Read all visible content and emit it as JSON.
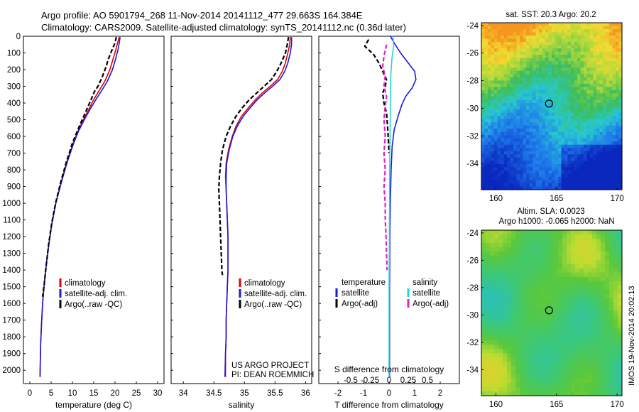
{
  "header": {
    "line1": "Argo profile: AO 5901794_268 11-Nov-2014 20141112_477 29.663S 164.384E",
    "line2": "Climatology: CARS2009. Satellite-adjusted climatology: synTS_20141112.nc (0.36d later)"
  },
  "colors": {
    "climatology": "#e00000",
    "satellite": "#1a1adc",
    "argo": "#000000",
    "salinity_satellite": "#22d8d8",
    "salinity_argo": "#e020c8"
  },
  "chart_data": [
    {
      "type": "line",
      "name": "temperature-profile",
      "xlabel": "temperature (deg C)",
      "ylabel": "",
      "xlim": [
        -1.5,
        31.5
      ],
      "ylim": [
        2080,
        0
      ],
      "x_ticks": [
        0,
        5,
        10,
        15,
        20,
        25,
        30
      ],
      "y_ticks": [
        0,
        100,
        200,
        300,
        400,
        500,
        600,
        700,
        800,
        900,
        1000,
        1100,
        1200,
        1300,
        1400,
        1500,
        1600,
        1700,
        1800,
        1900,
        2000
      ],
      "legend": [
        "climatology",
        "satellite-adj. clim.",
        "Argo(..raw -QC)"
      ],
      "series": [
        {
          "name": "climatology",
          "color": "climatology",
          "dash": "",
          "points": [
            [
              21,
              5
            ],
            [
              20.6,
              40
            ],
            [
              20.2,
              80
            ],
            [
              19.5,
              140
            ],
            [
              18.8,
              200
            ],
            [
              17.6,
              270
            ],
            [
              16.4,
              320
            ],
            [
              15,
              380
            ],
            [
              13.8,
              440
            ],
            [
              12.6,
              500
            ],
            [
              11.3,
              570
            ],
            [
              10.2,
              640
            ],
            [
              8.6,
              760
            ],
            [
              7.3,
              880
            ],
            [
              6.1,
              1000
            ],
            [
              5.2,
              1120
            ],
            [
              4.5,
              1240
            ],
            [
              3.9,
              1360
            ],
            [
              3.4,
              1480
            ],
            [
              3.0,
              1600
            ],
            [
              2.75,
              1720
            ],
            [
              2.55,
              1840
            ],
            [
              2.45,
              1960
            ],
            [
              2.4,
              2040
            ]
          ]
        },
        {
          "name": "satellite-adj. clim.",
          "color": "satellite",
          "dash": "",
          "points": [
            [
              21.2,
              5
            ],
            [
              21,
              40
            ],
            [
              20.7,
              80
            ],
            [
              20.1,
              140
            ],
            [
              19.4,
              200
            ],
            [
              18.2,
              270
            ],
            [
              17,
              320
            ],
            [
              15.5,
              380
            ],
            [
              14.1,
              440
            ],
            [
              12.8,
              500
            ],
            [
              11.4,
              570
            ],
            [
              10.3,
              640
            ],
            [
              8.7,
              760
            ],
            [
              7.35,
              880
            ],
            [
              6.1,
              1000
            ],
            [
              5.2,
              1120
            ],
            [
              4.5,
              1240
            ],
            [
              3.9,
              1360
            ],
            [
              3.4,
              1480
            ],
            [
              3.0,
              1600
            ],
            [
              2.75,
              1720
            ],
            [
              2.55,
              1840
            ],
            [
              2.45,
              1960
            ],
            [
              2.4,
              2040
            ]
          ]
        },
        {
          "name": "Argo(..raw -QC)",
          "color": "argo",
          "dash": "6,3",
          "points": [
            [
              20.3,
              5
            ],
            [
              20,
              40
            ],
            [
              19.5,
              70
            ],
            [
              19,
              100
            ],
            [
              18.4,
              140
            ],
            [
              17.8,
              190
            ],
            [
              16.9,
              250
            ],
            [
              16,
              300
            ],
            [
              15.2,
              330
            ],
            [
              14.2,
              390
            ],
            [
              13,
              460
            ],
            [
              12.3,
              500
            ],
            [
              11.1,
              570
            ],
            [
              10,
              640
            ],
            [
              8.5,
              760
            ],
            [
              7.2,
              880
            ],
            [
              6.05,
              1000
            ],
            [
              5.15,
              1120
            ],
            [
              4.45,
              1240
            ],
            [
              3.9,
              1360
            ],
            [
              3.4,
              1480
            ],
            [
              3.0,
              1560
            ]
          ]
        }
      ]
    },
    {
      "type": "line",
      "name": "salinity-profile",
      "xlabel": "salinity",
      "xlim": [
        33.8,
        36.1
      ],
      "ylim": [
        2080,
        0
      ],
      "x_ticks": [
        34,
        34.5,
        35,
        35.5,
        36
      ],
      "legend": [
        "climatology",
        "satellite-adj. clim.",
        "Argo(..raw -QC)"
      ],
      "series": [
        {
          "name": "climatology",
          "color": "climatology",
          "dash": "",
          "points": [
            [
              35.75,
              5
            ],
            [
              35.74,
              50
            ],
            [
              35.71,
              100
            ],
            [
              35.67,
              160
            ],
            [
              35.62,
              210
            ],
            [
              35.54,
              260
            ],
            [
              35.42,
              300
            ],
            [
              35.29,
              340
            ],
            [
              35.18,
              380
            ],
            [
              35.06,
              430
            ],
            [
              34.95,
              480
            ],
            [
              34.86,
              540
            ],
            [
              34.8,
              600
            ],
            [
              34.74,
              680
            ],
            [
              34.7,
              760
            ],
            [
              34.69,
              840
            ],
            [
              34.7,
              920
            ],
            [
              34.71,
              1000
            ],
            [
              34.72,
              1100
            ],
            [
              34.73,
              1200
            ],
            [
              34.73,
              1300
            ],
            [
              34.73,
              1400
            ],
            [
              34.72,
              1500
            ],
            [
              34.71,
              1600
            ],
            [
              34.7,
              1700
            ],
            [
              34.7,
              1800
            ],
            [
              34.69,
              1900
            ],
            [
              34.69,
              2040
            ]
          ]
        },
        {
          "name": "satellite-adj. clim.",
          "color": "satellite",
          "dash": "",
          "points": [
            [
              35.77,
              5
            ],
            [
              35.77,
              50
            ],
            [
              35.75,
              100
            ],
            [
              35.71,
              160
            ],
            [
              35.66,
              210
            ],
            [
              35.58,
              260
            ],
            [
              35.46,
              300
            ],
            [
              35.33,
              340
            ],
            [
              35.21,
              380
            ],
            [
              35.09,
              430
            ],
            [
              34.98,
              480
            ],
            [
              34.88,
              540
            ],
            [
              34.81,
              600
            ],
            [
              34.75,
              680
            ],
            [
              34.71,
              760
            ],
            [
              34.7,
              840
            ],
            [
              34.7,
              920
            ],
            [
              34.71,
              1000
            ],
            [
              34.72,
              1100
            ],
            [
              34.73,
              1200
            ],
            [
              34.73,
              1300
            ],
            [
              34.73,
              1400
            ],
            [
              34.72,
              1500
            ],
            [
              34.71,
              1600
            ],
            [
              34.7,
              1700
            ],
            [
              34.7,
              1800
            ],
            [
              34.69,
              1900
            ],
            [
              34.68,
              2040
            ]
          ]
        },
        {
          "name": "Argo(..raw -QC)",
          "color": "argo",
          "dash": "6,3",
          "points": [
            [
              35.72,
              5
            ],
            [
              35.7,
              50
            ],
            [
              35.67,
              100
            ],
            [
              35.6,
              160
            ],
            [
              35.53,
              210
            ],
            [
              35.44,
              260
            ],
            [
              35.32,
              300
            ],
            [
              35.2,
              340
            ],
            [
              35.08,
              380
            ],
            [
              34.96,
              430
            ],
            [
              34.86,
              480
            ],
            [
              34.77,
              540
            ],
            [
              34.7,
              600
            ],
            [
              34.64,
              680
            ],
            [
              34.61,
              760
            ],
            [
              34.59,
              840
            ],
            [
              34.58,
              920
            ],
            [
              34.59,
              1000
            ],
            [
              34.6,
              1100
            ],
            [
              34.61,
              1200
            ],
            [
              34.62,
              1300
            ],
            [
              34.63,
              1400
            ],
            [
              34.64,
              1430
            ]
          ]
        }
      ],
      "annotation_line1": "US ARGO PROJECT",
      "annotation_line2": "PI: DEAN ROEMMICH"
    },
    {
      "type": "line",
      "name": "difference-profile",
      "xlabel": "T difference from climatology",
      "xlabel_top": "S difference from climatology",
      "xlim": [
        -2.75,
        2.75
      ],
      "ylim": [
        2080,
        0
      ],
      "x_ticks": [
        "-2",
        "-1",
        "0",
        "1",
        "2"
      ],
      "s_ticks": [
        "-0.5",
        "-0.25",
        "0",
        "0.25",
        "0.5"
      ],
      "legend_temperature": {
        "title": "temperature",
        "items": [
          "satellite",
          "Argo(-adj)"
        ]
      },
      "legend_salinity": {
        "title": "salinity",
        "items": [
          "satellite",
          "Argo(-adj)"
        ]
      },
      "series": [
        {
          "name": "satellite",
          "color": "satellite",
          "dash": "",
          "points": [
            [
              0.05,
              0
            ],
            [
              0.2,
              40
            ],
            [
              0.45,
              100
            ],
            [
              0.75,
              160
            ],
            [
              1.0,
              210
            ],
            [
              1.05,
              260
            ],
            [
              0.9,
              310
            ],
            [
              0.65,
              360
            ],
            [
              0.5,
              410
            ],
            [
              0.35,
              480
            ],
            [
              0.2,
              560
            ],
            [
              0.12,
              660
            ],
            [
              0.08,
              800
            ],
            [
              0.05,
              1000
            ],
            [
              0.03,
              1200
            ],
            [
              0.02,
              1500
            ],
            [
              0.02,
              1800
            ],
            [
              0.02,
              2040
            ]
          ]
        },
        {
          "name": "Argo(-adj)",
          "color": "argo",
          "dash": "6,3",
          "points": [
            [
              -0.8,
              20
            ],
            [
              -0.95,
              60
            ],
            [
              -0.6,
              110
            ],
            [
              -0.4,
              160
            ],
            [
              -0.25,
              210
            ],
            [
              -0.1,
              260
            ],
            [
              -0.15,
              300
            ],
            [
              -0.25,
              340
            ],
            [
              -0.2,
              400
            ],
            [
              -0.1,
              460
            ],
            [
              -0.05,
              560
            ],
            [
              0,
              700
            ]
          ]
        },
        {
          "name": "salinity satellite",
          "color": "salinity_satellite",
          "dash": "",
          "points": [
            [
              0.15,
              0
            ],
            [
              0.18,
              60
            ],
            [
              0.12,
              120
            ],
            [
              0.08,
              200
            ],
            [
              0.05,
              300
            ],
            [
              0.05,
              420
            ],
            [
              0.04,
              600
            ],
            [
              0.02,
              800
            ],
            [
              0.02,
              1000
            ],
            [
              0.01,
              1200
            ],
            [
              0,
              1500
            ],
            [
              0,
              1800
            ],
            [
              0,
              2040
            ]
          ]
        },
        {
          "name": "salinity Argo(-adj)",
          "color": "salinity_argo",
          "dash": "6,3",
          "points": [
            [
              -0.1,
              50
            ],
            [
              -0.2,
              120
            ],
            [
              -0.25,
              180
            ],
            [
              -0.15,
              240
            ],
            [
              -0.2,
              300
            ],
            [
              -0.1,
              360
            ],
            [
              -0.15,
              420
            ],
            [
              -0.2,
              500
            ],
            [
              -0.15,
              600
            ],
            [
              -0.2,
              700
            ],
            [
              -0.15,
              800
            ],
            [
              -0.2,
              900
            ],
            [
              -0.15,
              1000
            ],
            [
              -0.15,
              1100
            ],
            [
              -0.12,
              1200
            ],
            [
              -0.1,
              1300
            ],
            [
              -0.08,
              1400
            ]
          ]
        }
      ]
    },
    {
      "type": "heatmap",
      "name": "sst-map",
      "title": "sat. SST: 20.3  Argo: 20.2",
      "xlim": [
        158.8,
        170.4
      ],
      "ylim": [
        -35.9,
        -23.8
      ],
      "x_ticks": [
        "160",
        "165",
        "170"
      ],
      "y_ticks": [
        "-24",
        "-26",
        "-28",
        "-30",
        "-32",
        "-34"
      ],
      "marker": [
        164.384,
        -29.663
      ]
    },
    {
      "type": "heatmap",
      "name": "sla-map",
      "title_line1": "Altim. SLA: 0.0023",
      "title_line2": "Argo h1000: -0.065  h2000: NaN",
      "xlim": [
        158.8,
        170.4
      ],
      "ylim": [
        -35.9,
        -23.8
      ],
      "x_ticks": [
        "160",
        "165",
        "170"
      ],
      "y_ticks": [
        "-24",
        "-26",
        "-28",
        "-30",
        "-32",
        "-34"
      ],
      "marker": [
        164.384,
        -29.663
      ]
    }
  ],
  "depth_axis": {
    "ticks": [
      "0",
      "100",
      "200",
      "300",
      "400",
      "500",
      "600",
      "700",
      "800",
      "900",
      "1000",
      "1100",
      "1200",
      "1300",
      "1400",
      "1500",
      "1600",
      "1700",
      "1800",
      "1900",
      "2000"
    ]
  },
  "side_label": "IMOS 19-Nov-2014 20:02:13"
}
